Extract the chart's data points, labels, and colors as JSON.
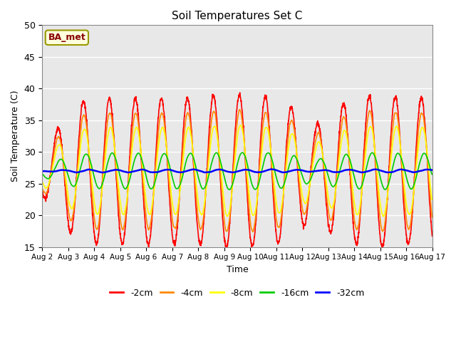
{
  "title": "Soil Temperatures Set C",
  "xlabel": "Time",
  "ylabel": "Soil Temperature (C)",
  "ylim": [
    15,
    50
  ],
  "xlim": [
    0,
    15
  ],
  "background_color": "#e8e8e8",
  "figure_background": "#ffffff",
  "annotation_text": "BA_met",
  "annotation_facecolor": "#ffffdd",
  "annotation_edgecolor": "#999900",
  "annotation_textcolor": "#880000",
  "xtick_labels": [
    "Aug 2",
    "Aug 3",
    "Aug 4",
    "Aug 5",
    "Aug 6",
    "Aug 7",
    "Aug 8",
    "Aug 9",
    "Aug 10",
    "Aug 11",
    "Aug 12",
    "Aug 13",
    "Aug 14",
    "Aug 15",
    "Aug 16",
    "Aug 17"
  ],
  "ytick_labels": [
    15,
    20,
    25,
    30,
    35,
    40,
    45,
    50
  ],
  "lines": {
    "-2cm": {
      "color": "#ff0000",
      "lw": 1.2
    },
    "-4cm": {
      "color": "#ff8800",
      "lw": 1.2
    },
    "-8cm": {
      "color": "#ffff00",
      "lw": 1.2
    },
    "-16cm": {
      "color": "#00cc00",
      "lw": 1.2
    },
    "-32cm": {
      "color": "#0000ff",
      "lw": 1.8
    }
  },
  "legend_order": [
    "-2cm",
    "-4cm",
    "-8cm",
    "-16cm",
    "-32cm"
  ]
}
